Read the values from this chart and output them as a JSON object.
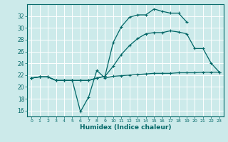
{
  "xlabel": "Humidex (Indice chaleur)",
  "bg_color": "#cceaea",
  "line_color": "#006666",
  "grid_color": "#ffffff",
  "xlim": [
    -0.5,
    23.5
  ],
  "ylim": [
    15.0,
    34.0
  ],
  "xticks": [
    0,
    1,
    2,
    3,
    4,
    5,
    6,
    7,
    8,
    9,
    10,
    11,
    12,
    13,
    14,
    15,
    16,
    17,
    18,
    19,
    20,
    21,
    22,
    23
  ],
  "yticks": [
    16,
    18,
    20,
    22,
    24,
    26,
    28,
    30,
    32
  ],
  "line1_x": [
    0,
    1,
    2,
    3,
    4,
    5,
    6,
    7,
    8,
    9,
    10,
    11,
    12,
    13,
    14,
    15,
    16,
    17,
    18,
    19,
    20,
    21,
    22,
    23
  ],
  "line1_y": [
    21.5,
    21.7,
    21.7,
    21.1,
    21.1,
    21.1,
    15.8,
    18.3,
    22.8,
    21.5,
    21.8,
    21.9,
    22.0,
    22.1,
    22.2,
    22.3,
    22.3,
    22.3,
    22.4,
    22.4,
    22.4,
    22.5,
    22.5,
    22.5
  ],
  "line2_x": [
    0,
    1,
    2,
    3,
    4,
    5,
    6,
    7,
    8,
    9,
    10,
    11,
    12,
    13,
    14,
    15,
    16,
    17,
    18,
    19,
    20,
    21,
    22,
    23
  ],
  "line2_y": [
    21.5,
    21.7,
    21.7,
    21.1,
    21.1,
    21.1,
    21.1,
    21.1,
    21.5,
    21.8,
    23.5,
    25.5,
    27.0,
    28.2,
    29.0,
    29.2,
    29.2,
    29.5,
    29.3,
    29.0,
    26.5,
    26.5,
    24.0,
    22.5
  ],
  "line3_x": [
    0,
    1,
    2,
    3,
    4,
    5,
    6,
    7,
    8,
    9,
    10,
    11,
    12,
    13,
    14,
    15,
    16,
    17,
    18,
    19
  ],
  "line3_y": [
    21.5,
    21.7,
    21.7,
    21.1,
    21.1,
    21.1,
    21.1,
    21.1,
    21.5,
    21.8,
    27.5,
    30.2,
    31.8,
    32.2,
    32.2,
    33.2,
    32.8,
    32.5,
    32.5,
    31.0
  ]
}
